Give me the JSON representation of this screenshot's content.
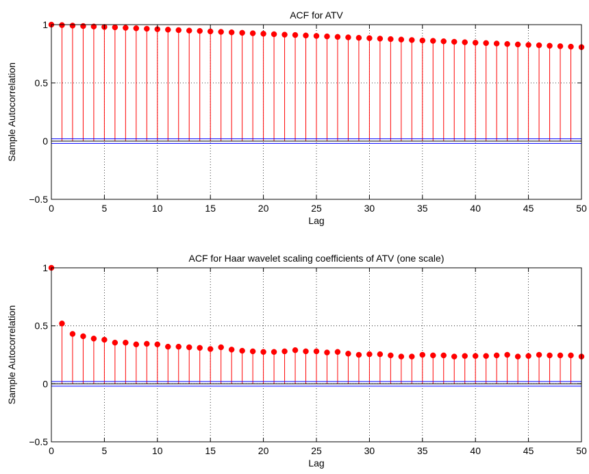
{
  "colors": {
    "stem": "#ff0000",
    "confidence_band": "#0000ff",
    "zero_line": "#000000",
    "grid": "#000000",
    "background": "#ffffff"
  },
  "chart_data": [
    {
      "type": "stem",
      "title": "ACF for ATV",
      "xlabel": "Lag",
      "ylabel": "Sample Autocorrelation",
      "xlim": [
        0,
        50
      ],
      "ylim": [
        -0.5,
        1
      ],
      "xticks": [
        "0",
        "5",
        "10",
        "15",
        "20",
        "25",
        "30",
        "35",
        "40",
        "45",
        "50"
      ],
      "yticks": [
        "−0.5",
        "0",
        "0.5",
        "1"
      ],
      "grid": true,
      "confidence_bounds": [
        0.02,
        -0.02
      ],
      "lags": [
        0,
        1,
        2,
        3,
        4,
        5,
        6,
        7,
        8,
        9,
        10,
        11,
        12,
        13,
        14,
        15,
        16,
        17,
        18,
        19,
        20,
        21,
        22,
        23,
        24,
        25,
        26,
        27,
        28,
        29,
        30,
        31,
        32,
        33,
        34,
        35,
        36,
        37,
        38,
        39,
        40,
        41,
        42,
        43,
        44,
        45,
        46,
        47,
        48,
        49,
        50
      ],
      "values": [
        1.0,
        0.996,
        0.992,
        0.988,
        0.984,
        0.98,
        0.977,
        0.973,
        0.969,
        0.965,
        0.961,
        0.957,
        0.953,
        0.949,
        0.946,
        0.942,
        0.938,
        0.934,
        0.93,
        0.926,
        0.922,
        0.918,
        0.914,
        0.911,
        0.907,
        0.903,
        0.899,
        0.895,
        0.891,
        0.887,
        0.884,
        0.88,
        0.876,
        0.872,
        0.868,
        0.864,
        0.861,
        0.857,
        0.853,
        0.849,
        0.845,
        0.842,
        0.838,
        0.834,
        0.83,
        0.826,
        0.823,
        0.819,
        0.815,
        0.811,
        0.807
      ]
    },
    {
      "type": "stem",
      "title": "ACF for Haar wavelet scaling coefficients of ATV (one scale)",
      "xlabel": "Lag",
      "ylabel": "Sample Autocorrelation",
      "xlim": [
        0,
        50
      ],
      "ylim": [
        -0.5,
        1
      ],
      "xticks": [
        "0",
        "5",
        "10",
        "15",
        "20",
        "25",
        "30",
        "35",
        "40",
        "45",
        "50"
      ],
      "yticks": [
        "−0.5",
        "0",
        "0.5",
        "1"
      ],
      "grid": true,
      "confidence_bounds": [
        0.02,
        -0.02
      ],
      "lags": [
        0,
        1,
        2,
        3,
        4,
        5,
        6,
        7,
        8,
        9,
        10,
        11,
        12,
        13,
        14,
        15,
        16,
        17,
        18,
        19,
        20,
        21,
        22,
        23,
        24,
        25,
        26,
        27,
        28,
        29,
        30,
        31,
        32,
        33,
        34,
        35,
        36,
        37,
        38,
        39,
        40,
        41,
        42,
        43,
        44,
        45,
        46,
        47,
        48,
        49,
        50
      ],
      "values": [
        1.0,
        0.52,
        0.43,
        0.41,
        0.39,
        0.38,
        0.355,
        0.355,
        0.34,
        0.345,
        0.34,
        0.32,
        0.32,
        0.315,
        0.31,
        0.3,
        0.315,
        0.295,
        0.285,
        0.28,
        0.275,
        0.275,
        0.28,
        0.29,
        0.28,
        0.28,
        0.27,
        0.275,
        0.26,
        0.25,
        0.255,
        0.255,
        0.245,
        0.235,
        0.235,
        0.25,
        0.245,
        0.245,
        0.235,
        0.24,
        0.24,
        0.24,
        0.245,
        0.25,
        0.235,
        0.24,
        0.25,
        0.245,
        0.245,
        0.245,
        0.235
      ]
    }
  ]
}
